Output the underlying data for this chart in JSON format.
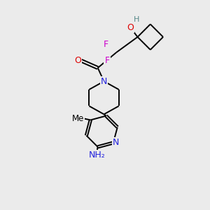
{
  "bg_color": "#ebebeb",
  "atom_colors": {
    "C": "#000000",
    "N": "#2222dd",
    "O": "#dd0000",
    "F": "#cc00cc",
    "H": "#558888"
  },
  "bond_color": "#000000",
  "bond_width": 1.4,
  "figsize": [
    3.0,
    3.0
  ],
  "dpi": 100
}
